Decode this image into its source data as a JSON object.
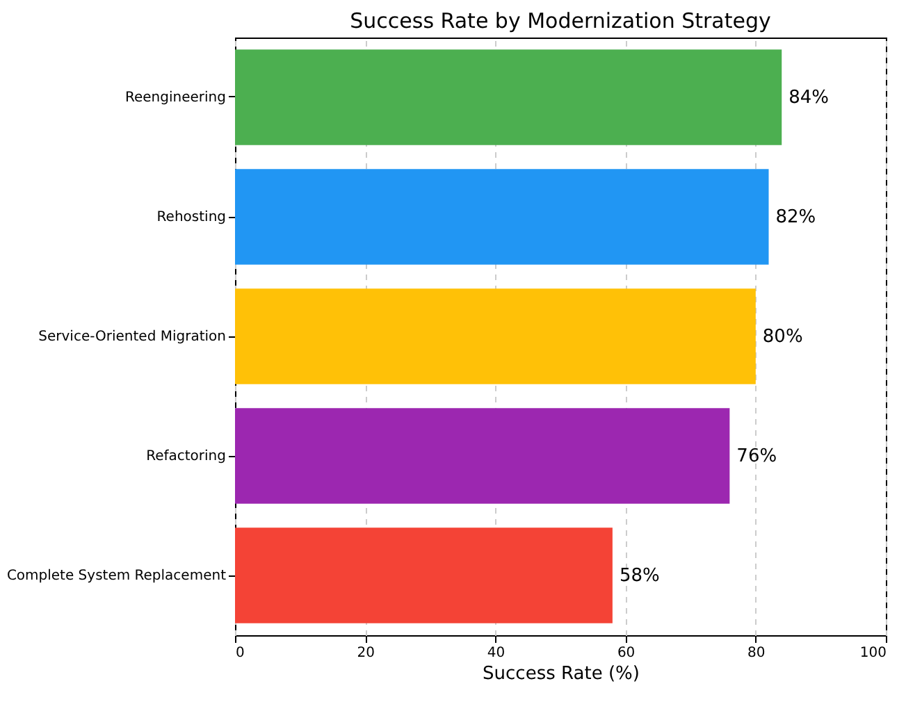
{
  "chart_data": {
    "type": "bar",
    "orientation": "horizontal",
    "title": "Success Rate by Modernization Strategy",
    "xlabel": "Success Rate (%)",
    "categories": [
      "Reengineering",
      "Rehosting",
      "Service-Oriented Migration",
      "Refactoring",
      "Complete System Replacement"
    ],
    "values": [
      84,
      82,
      80,
      76,
      58
    ],
    "colors": [
      "#4caf50",
      "#2196f3",
      "#ffc107",
      "#9c27b0",
      "#f44336"
    ],
    "value_labels": [
      "84%",
      "82%",
      "80%",
      "76%",
      "58%"
    ],
    "xlim": [
      0,
      100
    ],
    "xticks": [
      0,
      20,
      40,
      60,
      80,
      100
    ],
    "grid": "x"
  }
}
